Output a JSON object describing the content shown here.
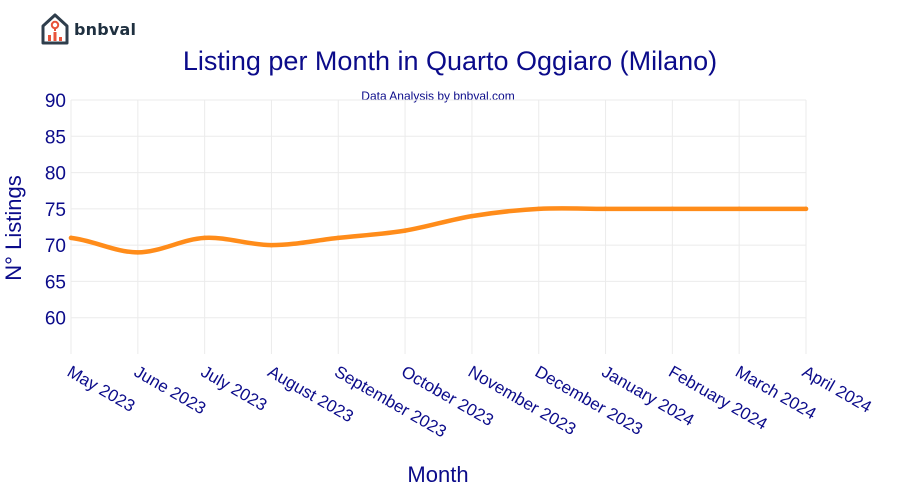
{
  "brand": {
    "name": "bnbval",
    "icon": "house-chart-logo-icon",
    "colors": {
      "dark": "#2f3e4c",
      "accent": "#e8533a"
    }
  },
  "chart_data": {
    "type": "line",
    "title": "Listing per Month in Quarto Oggiaro (Milano)",
    "subtitle": "Data Analysis by bnbval.com",
    "xlabel": "Month",
    "ylabel": "N° Listings",
    "categories": [
      "May 2023",
      "June 2023",
      "July 2023",
      "August 2023",
      "September 2023",
      "October 2023",
      "November 2023",
      "December 2023",
      "January 2024",
      "February 2024",
      "March 2024",
      "April 2024"
    ],
    "series": [
      {
        "values": [
          71,
          69,
          71,
          70,
          71,
          72,
          74,
          75,
          75,
          75,
          75,
          75
        ],
        "color": "#ff8c1a"
      }
    ],
    "ylim": [
      55,
      90
    ],
    "yticks": [
      60,
      65,
      70,
      75,
      80,
      85,
      90
    ],
    "grid": true,
    "legend": "none",
    "colors": {
      "title": "#0b0b8a",
      "grid": "#ebebeb"
    }
  }
}
